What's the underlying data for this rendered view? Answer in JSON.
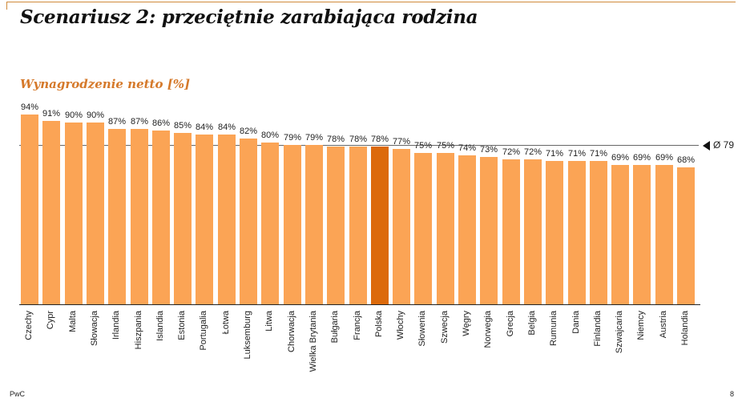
{
  "slide": {
    "title": "Scenariusz 2: przeciętnie zarabiająca rodzina",
    "footer_left": "PwC",
    "page_number": "8"
  },
  "colors": {
    "bar": "#fba455",
    "highlight_bar": "#dc6a0c",
    "subtitle": "#d5792a"
  },
  "chart_data": {
    "type": "bar",
    "title": "Wynagrodzenie netto [%]",
    "xlabel": "",
    "ylabel": "",
    "categories": [
      "Czechy",
      "Cypr",
      "Malta",
      "Słowacja",
      "Irlandia",
      "Hiszpania",
      "Islandia",
      "Estonia",
      "Portugalia",
      "Łotwa",
      "Luksemburg",
      "Litwa",
      "Chorwacja",
      "Wielka Brytania",
      "Bułgaria",
      "Francja",
      "Polska",
      "Włochy",
      "Słowenia",
      "Szwecja",
      "Węgry",
      "Norwegia",
      "Grecja",
      "Belgia",
      "Rumunia",
      "Dania",
      "Finlandia",
      "Szwajcaria",
      "Niemcy",
      "Austria",
      "Holandia"
    ],
    "values": [
      94,
      91,
      90,
      90,
      87,
      87,
      86,
      85,
      84,
      84,
      82,
      80,
      79,
      79,
      78,
      78,
      78,
      77,
      75,
      75,
      74,
      73,
      72,
      72,
      71,
      71,
      71,
      69,
      69,
      69,
      68
    ],
    "value_labels": [
      "94%",
      "91%",
      "90%",
      "90%",
      "87%",
      "87%",
      "86%",
      "85%",
      "84%",
      "84%",
      "82%",
      "80%",
      "79%",
      "79%",
      "78%",
      "78%",
      "78%",
      "77%",
      "75%",
      "75%",
      "74%",
      "73%",
      "72%",
      "72%",
      "71%",
      "71%",
      "71%",
      "69%",
      "69%",
      "69%",
      "68%"
    ],
    "highlight": "Polska",
    "average": {
      "value": 79,
      "label": "Ø 79"
    },
    "ylim": [
      0,
      100
    ],
    "grid": false,
    "legend": "none"
  }
}
